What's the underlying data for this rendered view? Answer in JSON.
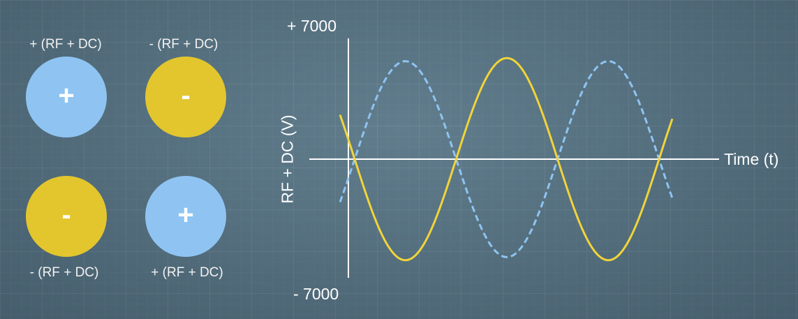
{
  "rods": [
    {
      "id": "top-left",
      "label": "+ (RF + DC)",
      "sign": "+",
      "polarity": "positive",
      "color": "#8fc4f2"
    },
    {
      "id": "top-right",
      "label": "- (RF + DC)",
      "sign": "-",
      "polarity": "negative",
      "color": "#e3c62e"
    },
    {
      "id": "bottom-left",
      "label": "- (RF + DC)",
      "sign": "-",
      "polarity": "negative",
      "color": "#e3c62e"
    },
    {
      "id": "bottom-right",
      "label": "+ (RF + DC)",
      "sign": "+",
      "polarity": "positive",
      "color": "#8fc4f2"
    }
  ],
  "graph": {
    "ymax_label": "+ 7000",
    "ymin_label": "- 7000",
    "ylabel": "RF + DC (V)",
    "xlabel": "Time (t)"
  },
  "chart_data": {
    "type": "line",
    "title": "",
    "xlabel": "Time (t)",
    "ylabel": "RF + DC (V)",
    "ylim": [
      -7000,
      7000
    ],
    "grid": false,
    "legend": "none",
    "series": [
      {
        "style": "solid",
        "color": "#f0d43a",
        "amplitude": 5500,
        "shape": "sine starting positive, first dip below zero near t=0"
      },
      {
        "style": "dashed",
        "color": "#8fc4f2",
        "amplitude": 5500,
        "shape": "sine in antiphase to solid series"
      }
    ]
  }
}
